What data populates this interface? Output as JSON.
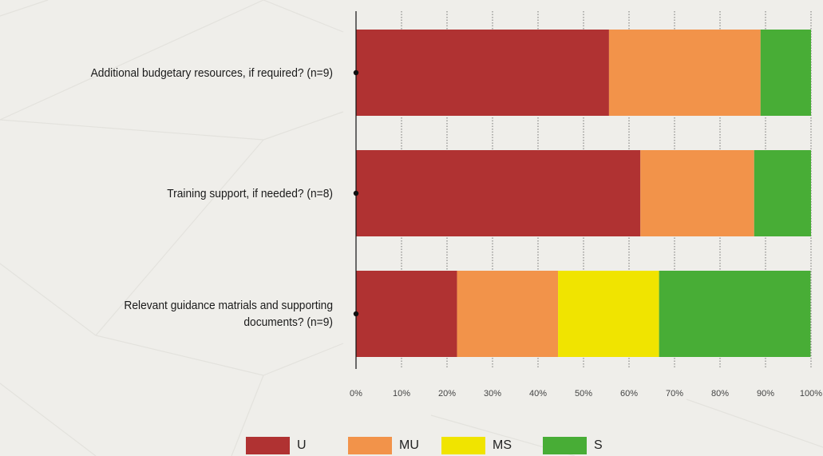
{
  "chart_data": {
    "type": "bar",
    "orientation": "horizontal",
    "stacked": true,
    "percent": true,
    "categories": [
      "Additional budgetary resources, if required? (n=9)",
      "Training support, if needed? (n=8)",
      "Relevant guidance matrials and supporting documents? (n=9)"
    ],
    "category_lines": [
      [
        "Additional budgetary resources, if required? (n=9)"
      ],
      [
        "Training support, if needed? (n=8)"
      ],
      [
        "Relevant guidance matrials and supporting",
        "documents? (n=9)"
      ]
    ],
    "series": [
      {
        "name": "U",
        "values": [
          55.6,
          62.5,
          22.2
        ],
        "color": "#b03232"
      },
      {
        "name": "MU",
        "values": [
          33.3,
          25.0,
          22.2
        ],
        "color": "#f2934a"
      },
      {
        "name": "MS",
        "values": [
          0,
          0,
          22.2
        ],
        "color": "#f0e400"
      },
      {
        "name": "S",
        "values": [
          11.1,
          12.5,
          33.3
        ],
        "color": "#48ad36"
      }
    ],
    "xlim": [
      0,
      100
    ],
    "xticks": [
      "0%",
      "10%",
      "20%",
      "30%",
      "40%",
      "50%",
      "60%",
      "70%",
      "80%",
      "90%",
      "100%"
    ],
    "grid": true,
    "legend_position": "bottom"
  }
}
